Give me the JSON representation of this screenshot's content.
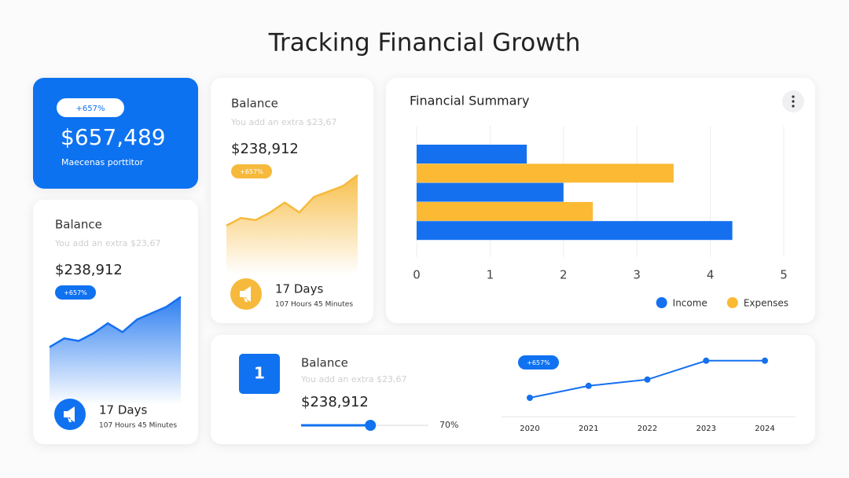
{
  "title": "Tracking Financial Growth",
  "cards": {
    "highlight": {
      "badge": "+657%",
      "amount": "$657,489",
      "caption": "Maecenas porttitor"
    },
    "balance_left": {
      "title": "Balance",
      "subtitle": "You add an extra $23,67",
      "amount": "$238,912",
      "badge": "+657%",
      "days": "17 Days",
      "time": "107 Hours 45 Minutes"
    },
    "balance_mid": {
      "title": "Balance",
      "subtitle": "You add an extra $23,67",
      "amount": "$238,912",
      "badge": "+657%",
      "days": "17 Days",
      "time": "107 Hours 45 Minutes"
    },
    "bottom": {
      "number": "1",
      "title": "Balance",
      "subtitle": "You add an extra $23,67",
      "amount": "$238,912",
      "progress": 70,
      "progress_label": "70%",
      "badge": "+657%"
    }
  },
  "chart_data": [
    {
      "type": "area",
      "color": "#1570ef",
      "values": [
        49,
        56,
        54,
        60,
        68,
        61,
        71,
        76,
        81,
        89
      ],
      "ylim": [
        0,
        100
      ]
    },
    {
      "type": "area",
      "color": "#f6b93b",
      "values": [
        45,
        52,
        50,
        57,
        66,
        57,
        71,
        76,
        81,
        91
      ],
      "ylim": [
        0,
        100
      ]
    },
    {
      "type": "bar",
      "orientation": "horizontal",
      "title": "Financial Summary",
      "categories": [
        null,
        null,
        null
      ],
      "series": [
        {
          "name": "Income",
          "color": "#1570ef",
          "values": [
            1.5,
            2.0,
            4.3
          ]
        },
        {
          "name": "Expenses",
          "color": "#fbb934",
          "values": [
            3.5,
            2.4,
            null
          ]
        }
      ],
      "xlim": [
        0,
        5
      ],
      "xticks": [
        0,
        1,
        2,
        3,
        4,
        5
      ],
      "grid": true,
      "legend": "bottom-right"
    },
    {
      "type": "line",
      "color": "#1570ef",
      "categories": [
        "2020",
        "2021",
        "2022",
        "2023",
        "2024"
      ],
      "values": [
        30,
        49,
        59,
        89,
        89
      ],
      "ylim": [
        0,
        100
      ]
    }
  ]
}
